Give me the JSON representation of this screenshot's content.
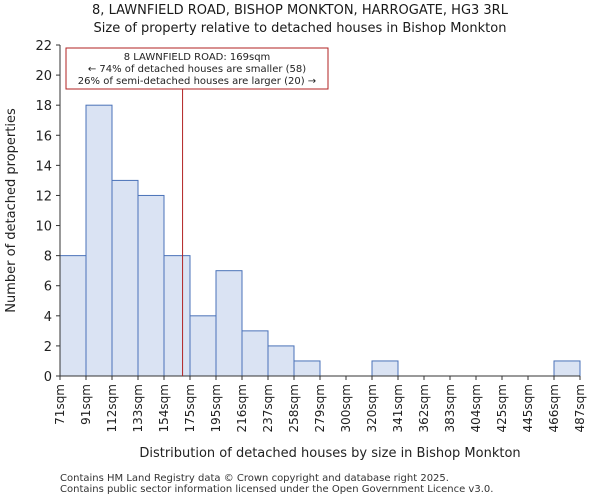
{
  "title_line1": "8, LAWNFIELD ROAD, BISHOP MONKTON, HARROGATE, HG3 3RL",
  "title_line2": "Size of property relative to detached houses in Bishop Monkton",
  "footer_line1": "Contains HM Land Registry data © Crown copyright and database right 2025.",
  "footer_line2": "Contains public sector information licensed under the Open Government Licence v3.0.",
  "colors": {
    "bar_fill": "#dae3f3",
    "bar_edge": "#4a72b8",
    "marker_line": "#b22222",
    "annotation_border": "#b22222"
  },
  "chart_data": {
    "type": "bar",
    "title": "8, LAWNFIELD ROAD, BISHOP MONKTON, HARROGATE, HG3 3RL",
    "subtitle": "Size of property relative to detached houses in Bishop Monkton",
    "xlabel": "Distribution of detached houses by size in Bishop Monkton",
    "ylabel": "Number of detached properties",
    "bin_edges": [
      71,
      91,
      112,
      133,
      154,
      175,
      195,
      216,
      237,
      258,
      279,
      300,
      320,
      341,
      362,
      383,
      404,
      425,
      445,
      466,
      487
    ],
    "tick_labels": [
      "71sqm",
      "91sqm",
      "112sqm",
      "133sqm",
      "154sqm",
      "175sqm",
      "195sqm",
      "216sqm",
      "237sqm",
      "258sqm",
      "279sqm",
      "300sqm",
      "320sqm",
      "341sqm",
      "362sqm",
      "383sqm",
      "404sqm",
      "425sqm",
      "445sqm",
      "466sqm",
      "487sqm"
    ],
    "values": [
      8,
      18,
      13,
      12,
      8,
      4,
      7,
      3,
      2,
      1,
      0,
      0,
      1,
      0,
      0,
      0,
      0,
      0,
      0,
      1
    ],
    "ylim": [
      0,
      22
    ],
    "yticks": [
      0,
      2,
      4,
      6,
      8,
      10,
      12,
      14,
      16,
      18,
      20,
      22
    ],
    "marker_value": 169,
    "annotation": {
      "line1": "8 LAWNFIELD ROAD: 169sqm",
      "line2": "← 74% of detached houses are smaller (58)",
      "line3": "26% of semi-detached houses are larger (20) →"
    }
  }
}
